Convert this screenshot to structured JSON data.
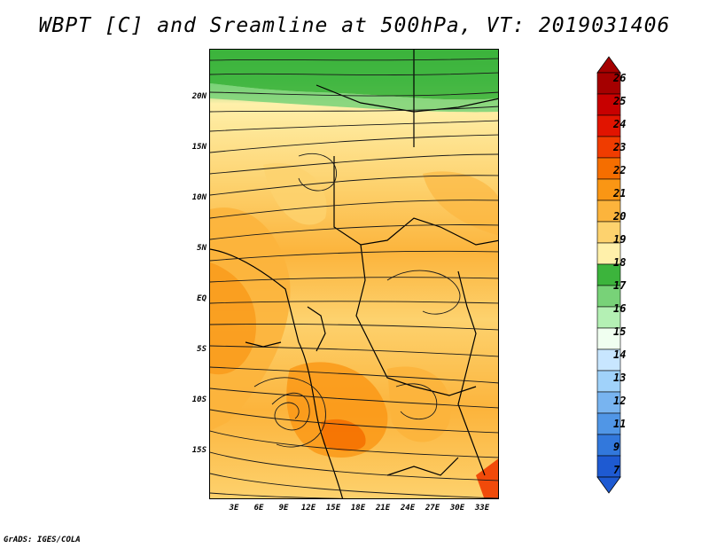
{
  "title": "WBPT [C] and Sreamline at 500hPa, VT: 2019031406",
  "credit": "GrADS: IGES/COLA",
  "map": {
    "variable": "Wet-bulb potential temperature [C]",
    "level": "500hPa",
    "valid_time": "2019031406",
    "latitude_labels": [
      "20N",
      "15N",
      "10N",
      "5N",
      "EQ",
      "5S",
      "10S",
      "15S"
    ],
    "longitude_labels": [
      "3E",
      "6E",
      "9E",
      "12E",
      "15E",
      "18E",
      "21E",
      "24E",
      "27E",
      "30E",
      "33E"
    ]
  },
  "colorbar": {
    "labels": [
      "26",
      "25",
      "24",
      "23",
      "22",
      "21",
      "20",
      "19",
      "18",
      "17",
      "16",
      "15",
      "14",
      "13",
      "12",
      "11",
      "9",
      "7"
    ],
    "colors": [
      "#a50000",
      "#c80000",
      "#e11400",
      "#f03c00",
      "#f56e00",
      "#fa9614",
      "#fcb43c",
      "#fdd26e",
      "#fff0aa",
      "#3cb43c",
      "#78d278",
      "#b4f0b4",
      "#f0fff0",
      "#c8e6ff",
      "#a0d2fa",
      "#78b4f0",
      "#5096e6",
      "#3278dc",
      "#1e5ad2"
    ]
  }
}
